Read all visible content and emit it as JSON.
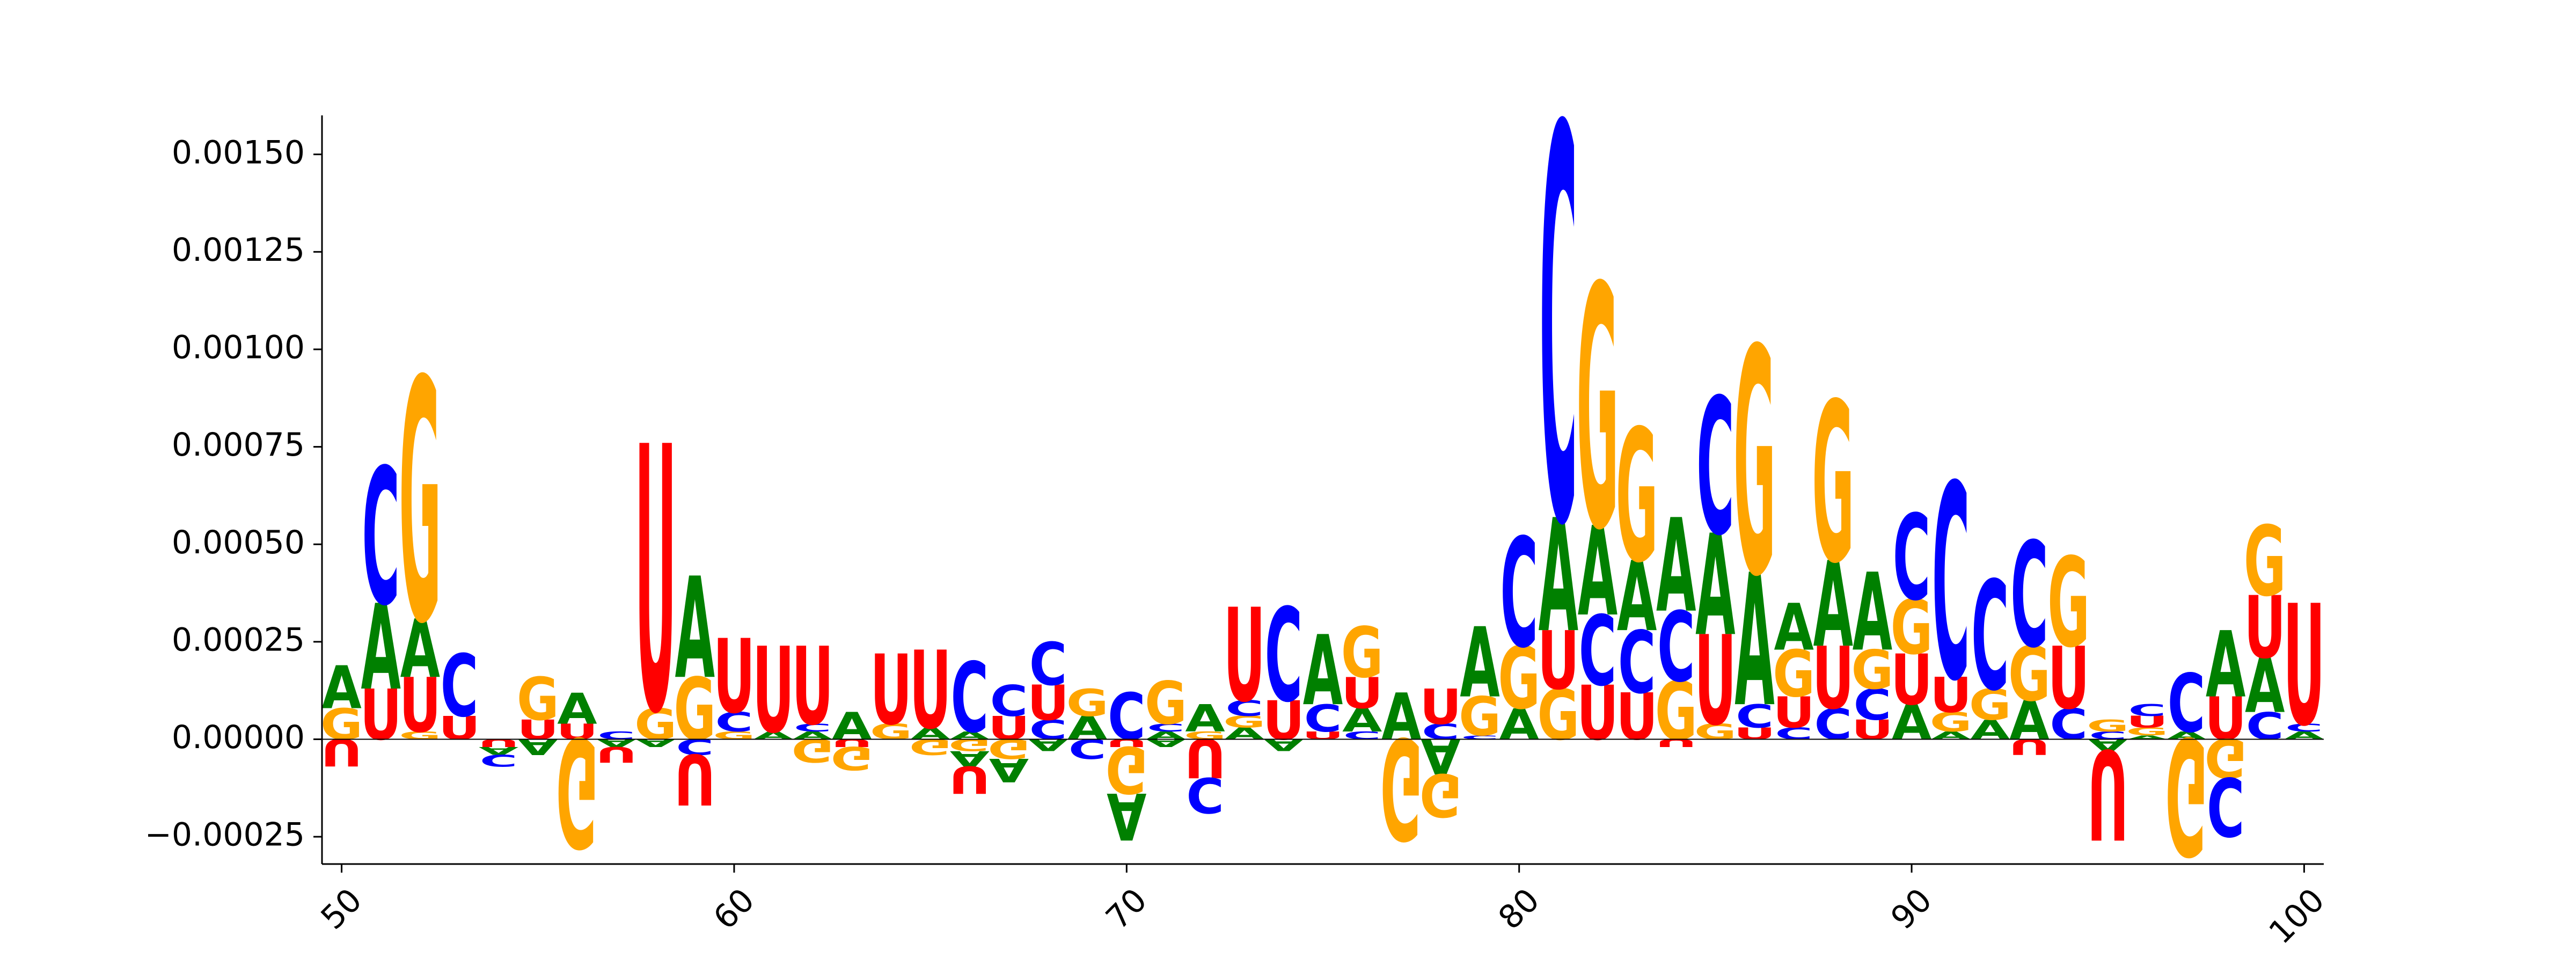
{
  "chart_data": {
    "type": "sequence-logo",
    "title": "",
    "xlabel": "",
    "ylabel": "",
    "xlim": [
      49.5,
      100.5
    ],
    "ylim": [
      -0.00032,
      0.0016
    ],
    "x_ticks": [
      50,
      60,
      70,
      80,
      90,
      100
    ],
    "x_tick_labels": [
      "50",
      "60",
      "70",
      "80",
      "90",
      "100"
    ],
    "y_ticks": [
      -0.00025,
      0.0,
      0.00025,
      0.0005,
      0.00075,
      0.001,
      0.00125,
      0.0015
    ],
    "y_tick_labels": [
      "−0.00025",
      "0.00000",
      "0.00025",
      "0.00050",
      "0.00075",
      "0.00100",
      "0.00125",
      "0.00150"
    ],
    "letter_colors": {
      "A": "#008000",
      "C": "#0000ff",
      "G": "#ffa500",
      "U": "#ff0000"
    },
    "positions": [
      {
        "x": 50,
        "pos": [
          [
            "G",
            8e-05
          ],
          [
            "A",
            0.00011
          ]
        ],
        "neg": [
          [
            "U",
            7e-05
          ]
        ]
      },
      {
        "x": 51,
        "pos": [
          [
            "U",
            0.00013
          ],
          [
            "A",
            0.00022
          ],
          [
            "C",
            0.00035
          ]
        ],
        "neg": []
      },
      {
        "x": 52,
        "pos": [
          [
            "G",
            2e-05
          ],
          [
            "U",
            0.00014
          ],
          [
            "A",
            0.00015
          ],
          [
            "G",
            0.00062
          ]
        ],
        "neg": []
      },
      {
        "x": 53,
        "pos": [
          [
            "U",
            6e-05
          ],
          [
            "C",
            0.00016
          ]
        ],
        "neg": []
      },
      {
        "x": 54,
        "pos": [],
        "neg": [
          [
            "U",
            2e-05
          ],
          [
            "A",
            2e-05
          ],
          [
            "C",
            3e-05
          ]
        ]
      },
      {
        "x": 55,
        "pos": [
          [
            "U",
            5e-05
          ],
          [
            "G",
            0.00011
          ]
        ],
        "neg": [
          [
            "A",
            4e-05
          ]
        ]
      },
      {
        "x": 56,
        "pos": [
          [
            "U",
            4e-05
          ],
          [
            "A",
            8e-05
          ]
        ],
        "neg": [
          [
            "G",
            0.00028
          ]
        ]
      },
      {
        "x": 57,
        "pos": [
          [
            "C",
            2e-05
          ]
        ],
        "neg": [
          [
            "A",
            2e-05
          ],
          [
            "U",
            4e-05
          ]
        ]
      },
      {
        "x": 58,
        "pos": [
          [
            "G",
            8e-05
          ],
          [
            "U",
            0.00068
          ]
        ],
        "neg": [
          [
            "A",
            2e-05
          ]
        ]
      },
      {
        "x": 59,
        "pos": [
          [
            "G",
            0.00016
          ],
          [
            "A",
            0.00026
          ]
        ],
        "neg": [
          [
            "C",
            4e-05
          ],
          [
            "U",
            0.00013
          ]
        ]
      },
      {
        "x": 60,
        "pos": [
          [
            "G",
            2e-05
          ],
          [
            "C",
            5e-05
          ],
          [
            "U",
            0.00019
          ]
        ],
        "neg": []
      },
      {
        "x": 61,
        "pos": [
          [
            "A",
            2e-05
          ],
          [
            "U",
            0.00022
          ]
        ],
        "neg": []
      },
      {
        "x": 62,
        "pos": [
          [
            "A",
            2e-05
          ],
          [
            "C",
            2e-05
          ],
          [
            "U",
            0.0002
          ]
        ],
        "neg": [
          [
            "G",
            6e-05
          ]
        ]
      },
      {
        "x": 63,
        "pos": [
          [
            "A",
            7e-05
          ]
        ],
        "neg": [
          [
            "U",
            2e-05
          ],
          [
            "G",
            6e-05
          ]
        ]
      },
      {
        "x": 64,
        "pos": [
          [
            "G",
            4e-05
          ],
          [
            "U",
            0.00018
          ]
        ],
        "neg": []
      },
      {
        "x": 65,
        "pos": [
          [
            "A",
            3e-05
          ],
          [
            "U",
            0.0002
          ]
        ],
        "neg": [
          [
            "G",
            4e-05
          ]
        ]
      },
      {
        "x": 66,
        "pos": [
          [
            "A",
            2e-05
          ],
          [
            "C",
            0.00018
          ]
        ],
        "neg": [
          [
            "G",
            3e-05
          ],
          [
            "A",
            4e-05
          ],
          [
            "U",
            7e-05
          ]
        ]
      },
      {
        "x": 67,
        "pos": [
          [
            "U",
            6e-05
          ],
          [
            "C",
            8e-05
          ]
        ],
        "neg": [
          [
            "G",
            5e-05
          ],
          [
            "A",
            6e-05
          ]
        ]
      },
      {
        "x": 68,
        "pos": [
          [
            "C",
            5e-05
          ],
          [
            "U",
            9e-05
          ],
          [
            "C",
            0.00011
          ]
        ],
        "neg": [
          [
            "A",
            3e-05
          ]
        ]
      },
      {
        "x": 69,
        "pos": [
          [
            "A",
            6e-05
          ],
          [
            "G",
            7e-05
          ]
        ],
        "neg": [
          [
            "C",
            5e-05
          ]
        ]
      },
      {
        "x": 70,
        "pos": [
          [
            "C",
            0.00012
          ]
        ],
        "neg": [
          [
            "U",
            2e-05
          ],
          [
            "G",
            0.00012
          ],
          [
            "A",
            0.00012
          ]
        ]
      },
      {
        "x": 71,
        "pos": [
          [
            "A",
            2e-05
          ],
          [
            "C",
            2e-05
          ],
          [
            "G",
            0.00011
          ]
        ],
        "neg": [
          [
            "A",
            2e-05
          ]
        ]
      },
      {
        "x": 72,
        "pos": [
          [
            "G",
            2e-05
          ],
          [
            "A",
            7e-05
          ]
        ],
        "neg": [
          [
            "U",
            0.0001
          ],
          [
            "C",
            9e-05
          ]
        ]
      },
      {
        "x": 73,
        "pos": [
          [
            "A",
            3e-05
          ],
          [
            "G",
            3e-05
          ],
          [
            "C",
            4e-05
          ],
          [
            "U",
            0.00024
          ]
        ],
        "neg": []
      },
      {
        "x": 74,
        "pos": [
          [
            "U",
            0.0001
          ],
          [
            "C",
            0.00024
          ]
        ],
        "neg": [
          [
            "A",
            3e-05
          ]
        ]
      },
      {
        "x": 75,
        "pos": [
          [
            "U",
            2e-05
          ],
          [
            "C",
            7e-05
          ],
          [
            "A",
            0.00018
          ]
        ],
        "neg": []
      },
      {
        "x": 76,
        "pos": [
          [
            "C",
            2e-05
          ],
          [
            "A",
            6e-05
          ],
          [
            "U",
            8e-05
          ],
          [
            "G",
            0.00013
          ]
        ],
        "neg": []
      },
      {
        "x": 77,
        "pos": [
          [
            "A",
            0.00012
          ]
        ],
        "neg": [
          [
            "G",
            0.00026
          ]
        ]
      },
      {
        "x": 78,
        "pos": [
          [
            "C",
            4e-05
          ],
          [
            "U",
            9e-05
          ]
        ],
        "neg": [
          [
            "A",
            9e-05
          ],
          [
            "G",
            0.00011
          ]
        ]
      },
      {
        "x": 79,
        "pos": [
          [
            "C",
            1e-05
          ],
          [
            "G",
            0.0001
          ],
          [
            "A",
            0.00018
          ]
        ],
        "neg": []
      },
      {
        "x": 80,
        "pos": [
          [
            "A",
            8e-05
          ],
          [
            "G",
            0.00016
          ],
          [
            "C",
            0.00028
          ]
        ],
        "neg": []
      },
      {
        "x": 81,
        "pos": [
          [
            "G",
            0.00013
          ],
          [
            "U",
            0.00015
          ],
          [
            "A",
            0.00029
          ],
          [
            "C",
            0.00101
          ]
        ],
        "neg": []
      },
      {
        "x": 82,
        "pos": [
          [
            "U",
            0.00014
          ],
          [
            "C",
            0.00018
          ],
          [
            "A",
            0.00023
          ],
          [
            "G",
            0.00062
          ]
        ],
        "neg": []
      },
      {
        "x": 83,
        "pos": [
          [
            "U",
            0.00012
          ],
          [
            "C",
            0.00016
          ],
          [
            "A",
            0.00018
          ],
          [
            "G",
            0.00034
          ]
        ],
        "neg": []
      },
      {
        "x": 84,
        "pos": [
          [
            "G",
            0.00015
          ],
          [
            "C",
            0.00018
          ],
          [
            "A",
            0.00024
          ]
        ],
        "neg": [
          [
            "U",
            2e-05
          ]
        ]
      },
      {
        "x": 85,
        "pos": [
          [
            "G",
            4e-05
          ],
          [
            "U",
            0.00023
          ],
          [
            "A",
            0.00026
          ],
          [
            "C",
            0.00035
          ]
        ],
        "neg": []
      },
      {
        "x": 86,
        "pos": [
          [
            "U",
            3e-05
          ],
          [
            "C",
            6e-05
          ],
          [
            "A",
            0.00034
          ],
          [
            "G",
            0.00058
          ]
        ],
        "neg": []
      },
      {
        "x": 87,
        "pos": [
          [
            "C",
            3e-05
          ],
          [
            "U",
            8e-05
          ],
          [
            "G",
            0.00012
          ],
          [
            "A",
            0.00012
          ]
        ],
        "neg": []
      },
      {
        "x": 88,
        "pos": [
          [
            "C",
            8e-05
          ],
          [
            "U",
            0.00016
          ],
          [
            "A",
            0.00022
          ],
          [
            "G",
            0.00041
          ]
        ],
        "neg": []
      },
      {
        "x": 89,
        "pos": [
          [
            "U",
            5e-05
          ],
          [
            "C",
            8e-05
          ],
          [
            "G",
            0.0001
          ],
          [
            "A",
            0.0002
          ]
        ],
        "neg": []
      },
      {
        "x": 90,
        "pos": [
          [
            "A",
            9e-05
          ],
          [
            "U",
            0.00013
          ],
          [
            "G",
            0.00014
          ],
          [
            "C",
            0.00022
          ]
        ],
        "neg": []
      },
      {
        "x": 91,
        "pos": [
          [
            "A",
            2e-05
          ],
          [
            "G",
            5e-05
          ],
          [
            "U",
            9e-05
          ],
          [
            "C",
            0.0005
          ]
        ],
        "neg": []
      },
      {
        "x": 92,
        "pos": [
          [
            "A",
            5e-05
          ],
          [
            "G",
            8e-05
          ],
          [
            "C",
            0.00028
          ]
        ],
        "neg": []
      },
      {
        "x": 93,
        "pos": [
          [
            "A",
            0.0001
          ],
          [
            "G",
            0.00014
          ],
          [
            "C",
            0.00027
          ]
        ],
        "neg": [
          [
            "U",
            4e-05
          ]
        ]
      },
      {
        "x": 94,
        "pos": [
          [
            "C",
            8e-05
          ],
          [
            "U",
            0.00016
          ],
          [
            "G",
            0.00023
          ]
        ],
        "neg": []
      },
      {
        "x": 95,
        "pos": [
          [
            "C",
            2e-05
          ],
          [
            "G",
            3e-05
          ]
        ],
        "neg": [
          [
            "A",
            3e-05
          ],
          [
            "U",
            0.00023
          ]
        ]
      },
      {
        "x": 96,
        "pos": [
          [
            "A",
            1e-05
          ],
          [
            "G",
            2e-05
          ],
          [
            "U",
            3e-05
          ],
          [
            "C",
            3e-05
          ]
        ],
        "neg": []
      },
      {
        "x": 97,
        "pos": [
          [
            "A",
            2e-05
          ],
          [
            "C",
            0.00015
          ]
        ],
        "neg": [
          [
            "G",
            0.0003
          ]
        ]
      },
      {
        "x": 98,
        "pos": [
          [
            "U",
            0.00011
          ],
          [
            "A",
            0.00017
          ]
        ],
        "neg": [
          [
            "G",
            0.0001
          ],
          [
            "C",
            0.00015
          ]
        ]
      },
      {
        "x": 99,
        "pos": [
          [
            "C",
            7e-05
          ],
          [
            "A",
            0.00014
          ],
          [
            "U",
            0.00016
          ],
          [
            "G",
            0.00018
          ]
        ],
        "neg": []
      },
      {
        "x": 100,
        "pos": [
          [
            "A",
            2e-05
          ],
          [
            "C",
            2e-05
          ],
          [
            "U",
            0.00031
          ]
        ],
        "neg": []
      }
    ]
  }
}
